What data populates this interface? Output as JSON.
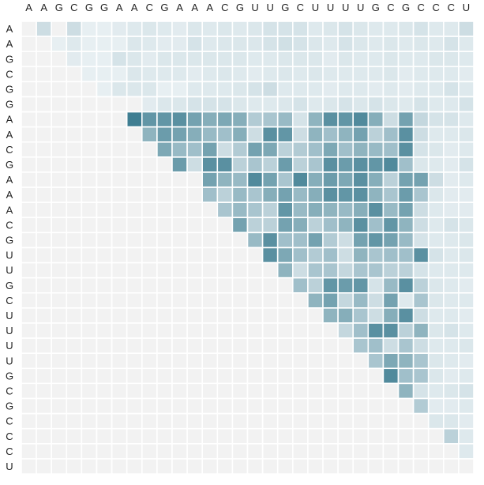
{
  "chart_data": {
    "type": "heatmap",
    "title": "",
    "xlabel": "",
    "ylabel": "",
    "sequence": [
      "A",
      "A",
      "G",
      "C",
      "G",
      "G",
      "A",
      "A",
      "C",
      "G",
      "A",
      "A",
      "A",
      "C",
      "G",
      "U",
      "U",
      "G",
      "C",
      "U",
      "U",
      "U",
      "U",
      "G",
      "C",
      "G",
      "C",
      "C",
      "C",
      "U"
    ],
    "x_labels": [
      "A",
      "A",
      "G",
      "C",
      "G",
      "G",
      "A",
      "A",
      "C",
      "G",
      "A",
      "A",
      "A",
      "C",
      "G",
      "U",
      "U",
      "G",
      "C",
      "U",
      "U",
      "U",
      "U",
      "G",
      "C",
      "G",
      "C",
      "C",
      "C",
      "U"
    ],
    "y_labels": [
      "A",
      "A",
      "G",
      "C",
      "G",
      "G",
      "A",
      "A",
      "C",
      "G",
      "A",
      "A",
      "A",
      "C",
      "G",
      "U",
      "U",
      "G",
      "C",
      "U",
      "U",
      "U",
      "U",
      "G",
      "C",
      "G",
      "C",
      "C",
      "C",
      "U"
    ],
    "value_range": [
      0,
      1
    ],
    "colors": {
      "background": "#f2f2f2",
      "low": "#f0f5f7",
      "high": "#3f7e92",
      "grid": "#ffffff",
      "label": "#222222"
    },
    "matrix": [
      [
        0,
        0.2,
        0,
        0.2,
        0.05,
        0.05,
        0.08,
        0.1,
        0.12,
        0.1,
        0.08,
        0.12,
        0.1,
        0.12,
        0.1,
        0.12,
        0.15,
        0.15,
        0.15,
        0.1,
        0.12,
        0.15,
        0.12,
        0.1,
        0.1,
        0.12,
        0.15,
        0.1,
        0.1,
        0.2
      ],
      [
        0,
        0,
        0.05,
        0.1,
        0.05,
        0.05,
        0.05,
        0.12,
        0.1,
        0.08,
        0.08,
        0.15,
        0.1,
        0.12,
        0.12,
        0.12,
        0.15,
        0.18,
        0.15,
        0.12,
        0.1,
        0.15,
        0.12,
        0.1,
        0.12,
        0.1,
        0.12,
        0.1,
        0.15,
        0.1
      ],
      [
        0,
        0,
        0,
        0.08,
        0.05,
        0.05,
        0.15,
        0.12,
        0.08,
        0.12,
        0.12,
        0.12,
        0.12,
        0.12,
        0.12,
        0.1,
        0.1,
        0.12,
        0.12,
        0.12,
        0.08,
        0.12,
        0.1,
        0.1,
        0.12,
        0.1,
        0.1,
        0.12,
        0.12,
        0.1
      ],
      [
        0,
        0,
        0,
        0,
        0.05,
        0.05,
        0.05,
        0.12,
        0.1,
        0.1,
        0.1,
        0.08,
        0.1,
        0.12,
        0.1,
        0.08,
        0.1,
        0.12,
        0.1,
        0.12,
        0.1,
        0.1,
        0.1,
        0.1,
        0.12,
        0.08,
        0.1,
        0.1,
        0.1,
        0.08
      ],
      [
        0,
        0,
        0,
        0,
        0,
        0.05,
        0.12,
        0.12,
        0.12,
        0.05,
        0.05,
        0.1,
        0.1,
        0.1,
        0.12,
        0.15,
        0.2,
        0.1,
        0.1,
        0.1,
        0.08,
        0.1,
        0.1,
        0.08,
        0.1,
        0.08,
        0.1,
        0.1,
        0.15,
        0.1
      ],
      [
        0,
        0,
        0,
        0,
        0,
        0,
        0,
        0,
        0.08,
        0.12,
        0.12,
        0.15,
        0.15,
        0.15,
        0.12,
        0.1,
        0.1,
        0.12,
        0.15,
        0.1,
        0.12,
        0.15,
        0.12,
        0.15,
        0.12,
        0.1,
        0.15,
        0.1,
        0.1,
        0.15
      ],
      [
        0,
        0,
        0,
        0,
        0,
        0,
        0,
        1.0,
        0.8,
        0.8,
        0.85,
        0.7,
        0.6,
        0.65,
        0.6,
        0.35,
        0.4,
        0.5,
        0.15,
        0.55,
        0.85,
        0.8,
        0.9,
        0.6,
        0.2,
        0.7,
        0.25,
        0.15,
        0.15,
        0.1
      ],
      [
        0,
        0,
        0,
        0,
        0,
        0,
        0,
        0,
        0.55,
        0.75,
        0.7,
        0.6,
        0.5,
        0.45,
        0.6,
        0.2,
        0.85,
        0.8,
        0.2,
        0.55,
        0.45,
        0.55,
        0.7,
        0.3,
        0.45,
        0.85,
        0.2,
        0.1,
        0.1,
        0.12
      ],
      [
        0,
        0,
        0,
        0,
        0,
        0,
        0,
        0,
        0,
        0.65,
        0.5,
        0.45,
        0.7,
        0.2,
        0.35,
        0.7,
        0.65,
        0.3,
        0.35,
        0.45,
        0.65,
        0.45,
        0.55,
        0.5,
        0.45,
        0.85,
        0.15,
        0.12,
        0.08,
        0.1
      ],
      [
        0,
        0,
        0,
        0,
        0,
        0,
        0,
        0,
        0,
        0,
        0.75,
        0.2,
        0.85,
        0.85,
        0.3,
        0.4,
        0.3,
        0.75,
        0.3,
        0.4,
        0.85,
        0.75,
        0.85,
        0.8,
        0.9,
        0.45,
        0.12,
        0.1,
        0.08,
        0.15
      ],
      [
        0,
        0,
        0,
        0,
        0,
        0,
        0,
        0,
        0,
        0,
        0,
        0,
        0.7,
        0.55,
        0.5,
        0.9,
        0.7,
        0.4,
        0.9,
        0.6,
        0.75,
        0.65,
        0.85,
        0.6,
        0.3,
        0.7,
        0.7,
        0.2,
        0.08,
        0.1
      ],
      [
        0,
        0,
        0,
        0,
        0,
        0,
        0,
        0,
        0,
        0,
        0,
        0,
        0.45,
        0.3,
        0.5,
        0.4,
        0.6,
        0.7,
        0.5,
        0.6,
        0.85,
        0.8,
        0.85,
        0.55,
        0.4,
        0.75,
        0.4,
        0.12,
        0.08,
        0.08
      ],
      [
        0,
        0,
        0,
        0,
        0,
        0,
        0,
        0,
        0,
        0,
        0,
        0,
        0,
        0.4,
        0.5,
        0.4,
        0.3,
        0.8,
        0.5,
        0.6,
        0.55,
        0.5,
        0.6,
        0.85,
        0.5,
        0.7,
        0.2,
        0.1,
        0.08,
        0.08
      ],
      [
        0,
        0,
        0,
        0,
        0,
        0,
        0,
        0,
        0,
        0,
        0,
        0,
        0,
        0,
        0.7,
        0.3,
        0.3,
        0.7,
        0.6,
        0.3,
        0.45,
        0.55,
        0.85,
        0.45,
        0.8,
        0.55,
        0.2,
        0.1,
        0.15,
        0.12
      ],
      [
        0,
        0,
        0,
        0,
        0,
        0,
        0,
        0,
        0,
        0,
        0,
        0,
        0,
        0,
        0,
        0.5,
        0.85,
        0.45,
        0.45,
        0.7,
        0.35,
        0.2,
        0.7,
        0.8,
        0.7,
        0.5,
        0.15,
        0.1,
        0.1,
        0.12
      ],
      [
        0,
        0,
        0,
        0,
        0,
        0,
        0,
        0,
        0,
        0,
        0,
        0,
        0,
        0,
        0,
        0,
        0.85,
        0.65,
        0.45,
        0.35,
        0.45,
        0.2,
        0.55,
        0.4,
        0.45,
        0.45,
        0.85,
        0.15,
        0.1,
        0.12
      ],
      [
        0,
        0,
        0,
        0,
        0,
        0,
        0,
        0,
        0,
        0,
        0,
        0,
        0,
        0,
        0,
        0,
        0,
        0.55,
        0.2,
        0.4,
        0.4,
        0.25,
        0.4,
        0.4,
        0.3,
        0.3,
        0.15,
        0.1,
        0.1,
        0.1
      ],
      [
        0,
        0,
        0,
        0,
        0,
        0,
        0,
        0,
        0,
        0,
        0,
        0,
        0,
        0,
        0,
        0,
        0,
        0,
        0.45,
        0.3,
        0.8,
        0.75,
        0.8,
        0.15,
        0.5,
        0.85,
        0.3,
        0.12,
        0.1,
        0.08
      ],
      [
        0,
        0,
        0,
        0,
        0,
        0,
        0,
        0,
        0,
        0,
        0,
        0,
        0,
        0,
        0,
        0,
        0,
        0,
        0,
        0.55,
        0.7,
        0.25,
        0.5,
        0.2,
        0.7,
        0.1,
        0.4,
        0.12,
        0.1,
        0.1
      ],
      [
        0,
        0,
        0,
        0,
        0,
        0,
        0,
        0,
        0,
        0,
        0,
        0,
        0,
        0,
        0,
        0,
        0,
        0,
        0,
        0,
        0.55,
        0.6,
        0.4,
        0.2,
        0.6,
        0.85,
        0.2,
        0.1,
        0.1,
        0.08
      ],
      [
        0,
        0,
        0,
        0,
        0,
        0,
        0,
        0,
        0,
        0,
        0,
        0,
        0,
        0,
        0,
        0,
        0,
        0,
        0,
        0,
        0,
        0.25,
        0.45,
        0.85,
        0.85,
        0.3,
        0.55,
        0.12,
        0.15,
        0.1
      ],
      [
        0,
        0,
        0,
        0,
        0,
        0,
        0,
        0,
        0,
        0,
        0,
        0,
        0,
        0,
        0,
        0,
        0,
        0,
        0,
        0,
        0,
        0,
        0.4,
        0.45,
        0.2,
        0.4,
        0.2,
        0.1,
        0.1,
        0.12
      ],
      [
        0,
        0,
        0,
        0,
        0,
        0,
        0,
        0,
        0,
        0,
        0,
        0,
        0,
        0,
        0,
        0,
        0,
        0,
        0,
        0,
        0,
        0,
        0,
        0.4,
        0.65,
        0.55,
        0.4,
        0.12,
        0.1,
        0.08
      ],
      [
        0,
        0,
        0,
        0,
        0,
        0,
        0,
        0,
        0,
        0,
        0,
        0,
        0,
        0,
        0,
        0,
        0,
        0,
        0,
        0,
        0,
        0,
        0,
        0,
        0.9,
        0.45,
        0.4,
        0.12,
        0.08,
        0.1
      ],
      [
        0,
        0,
        0,
        0,
        0,
        0,
        0,
        0,
        0,
        0,
        0,
        0,
        0,
        0,
        0,
        0,
        0,
        0,
        0,
        0,
        0,
        0,
        0,
        0,
        0,
        0.55,
        0.15,
        0.1,
        0.12,
        0.15
      ],
      [
        0,
        0,
        0,
        0,
        0,
        0,
        0,
        0,
        0,
        0,
        0,
        0,
        0,
        0,
        0,
        0,
        0,
        0,
        0,
        0,
        0,
        0,
        0,
        0,
        0,
        0,
        0.35,
        0.08,
        0.08,
        0.1
      ],
      [
        0,
        0,
        0,
        0,
        0,
        0,
        0,
        0,
        0,
        0,
        0,
        0,
        0,
        0,
        0,
        0,
        0,
        0,
        0,
        0,
        0,
        0,
        0,
        0,
        0,
        0,
        0,
        0.12,
        0.12,
        0.08
      ],
      [
        0,
        0,
        0,
        0,
        0,
        0,
        0,
        0,
        0,
        0,
        0,
        0,
        0,
        0,
        0,
        0,
        0,
        0,
        0,
        0,
        0,
        0,
        0,
        0,
        0,
        0,
        0,
        0,
        0.3,
        0.1
      ],
      [
        0,
        0,
        0,
        0,
        0,
        0,
        0,
        0,
        0,
        0,
        0,
        0,
        0,
        0,
        0,
        0,
        0,
        0,
        0,
        0,
        0,
        0,
        0,
        0,
        0,
        0,
        0,
        0,
        0,
        0.1
      ],
      [
        0,
        0,
        0,
        0,
        0,
        0,
        0,
        0,
        0,
        0,
        0,
        0,
        0,
        0,
        0,
        0,
        0,
        0,
        0,
        0,
        0,
        0,
        0,
        0,
        0,
        0,
        0,
        0,
        0,
        0
      ]
    ]
  }
}
